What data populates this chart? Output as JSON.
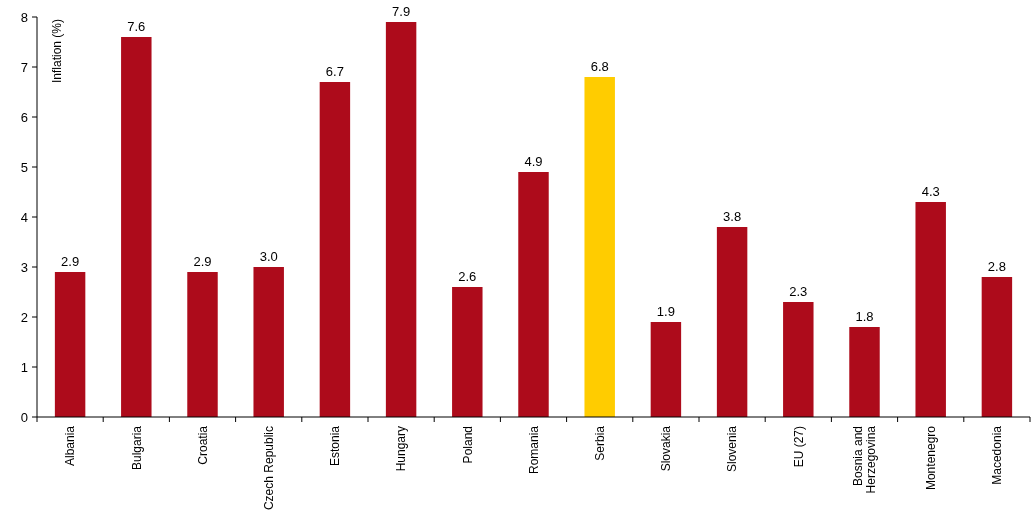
{
  "chart_data": {
    "type": "bar",
    "ylabel": "Inflation (%)",
    "categories": [
      "Albania",
      "Bulgaria",
      "Croatia",
      "Czech Republic",
      "Estonia",
      "Hungary",
      "Poland",
      "Romania",
      "Serbia",
      "Slovakia",
      "Slovenia",
      "EU (27)",
      "Bosnia and Herzegovina",
      "Montenegro",
      "Macedonia"
    ],
    "values": [
      2.9,
      7.6,
      2.9,
      3.0,
      6.7,
      7.9,
      2.6,
      4.9,
      6.8,
      1.9,
      3.8,
      2.3,
      1.8,
      4.3,
      2.8
    ],
    "value_labels": [
      "2.9",
      "7.6",
      "2.9",
      "3.0",
      "6.7",
      "7.9",
      "2.6",
      "4.9",
      "6.8",
      "1.9",
      "3.8",
      "2.3",
      "1.8",
      "4.3",
      "2.8"
    ],
    "colors": [
      "#ad0b1b",
      "#ad0b1b",
      "#ad0b1b",
      "#ad0b1b",
      "#ad0b1b",
      "#ad0b1b",
      "#ad0b1b",
      "#ad0b1b",
      "#ffcc00",
      "#ad0b1b",
      "#ad0b1b",
      "#ad0b1b",
      "#ad0b1b",
      "#ad0b1b",
      "#ad0b1b"
    ],
    "ylim": [
      0,
      8
    ],
    "yticks": [
      0,
      1,
      2,
      3,
      4,
      5,
      6,
      7,
      8
    ],
    "grid": false
  }
}
